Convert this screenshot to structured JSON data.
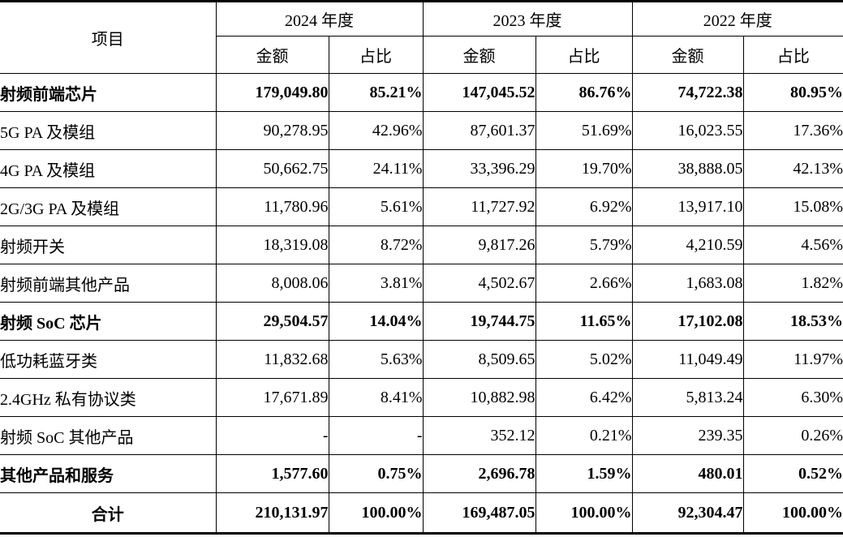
{
  "table": {
    "item_header": "项目",
    "year_groups": [
      {
        "label": "2024 年度",
        "sub_headers": [
          "金额",
          "占比"
        ]
      },
      {
        "label": "2023 年度",
        "sub_headers": [
          "金额",
          "占比"
        ]
      },
      {
        "label": "2022 年度",
        "sub_headers": [
          "金额",
          "占比"
        ]
      }
    ],
    "rows": [
      {
        "label": "射频前端芯片",
        "type": "section",
        "values": [
          "179,049.80",
          "85.21%",
          "147,045.52",
          "86.76%",
          "74,722.38",
          "80.95%"
        ]
      },
      {
        "label": "5G PA 及模组",
        "type": "detail",
        "values": [
          "90,278.95",
          "42.96%",
          "87,601.37",
          "51.69%",
          "16,023.55",
          "17.36%"
        ]
      },
      {
        "label": "4G PA 及模组",
        "type": "detail",
        "values": [
          "50,662.75",
          "24.11%",
          "33,396.29",
          "19.70%",
          "38,888.05",
          "42.13%"
        ]
      },
      {
        "label": "2G/3G PA 及模组",
        "type": "detail",
        "values": [
          "11,780.96",
          "5.61%",
          "11,727.92",
          "6.92%",
          "13,917.10",
          "15.08%"
        ]
      },
      {
        "label": "射频开关",
        "type": "detail",
        "values": [
          "18,319.08",
          "8.72%",
          "9,817.26",
          "5.79%",
          "4,210.59",
          "4.56%"
        ]
      },
      {
        "label": "射频前端其他产品",
        "type": "detail",
        "values": [
          "8,008.06",
          "3.81%",
          "4,502.67",
          "2.66%",
          "1,683.08",
          "1.82%"
        ]
      },
      {
        "label": "射频 SoC 芯片",
        "type": "section",
        "values": [
          "29,504.57",
          "14.04%",
          "19,744.75",
          "11.65%",
          "17,102.08",
          "18.53%"
        ]
      },
      {
        "label": "低功耗蓝牙类",
        "type": "detail",
        "values": [
          "11,832.68",
          "5.63%",
          "8,509.65",
          "5.02%",
          "11,049.49",
          "11.97%"
        ]
      },
      {
        "label": "2.4GHz 私有协议类",
        "type": "detail",
        "values": [
          "17,671.89",
          "8.41%",
          "10,882.98",
          "6.42%",
          "5,813.24",
          "6.30%"
        ]
      },
      {
        "label": "射频 SoC 其他产品",
        "type": "detail",
        "values": [
          "-",
          "-",
          "352.12",
          "0.21%",
          "239.35",
          "0.26%"
        ]
      },
      {
        "label": "其他产品和服务",
        "type": "section",
        "values": [
          "1,577.60",
          "0.75%",
          "2,696.78",
          "1.59%",
          "480.01",
          "0.52%"
        ]
      },
      {
        "label": "合计",
        "type": "total",
        "values": [
          "210,131.97",
          "100.00%",
          "169,487.05",
          "100.00%",
          "92,304.47",
          "100.00%"
        ]
      }
    ]
  }
}
